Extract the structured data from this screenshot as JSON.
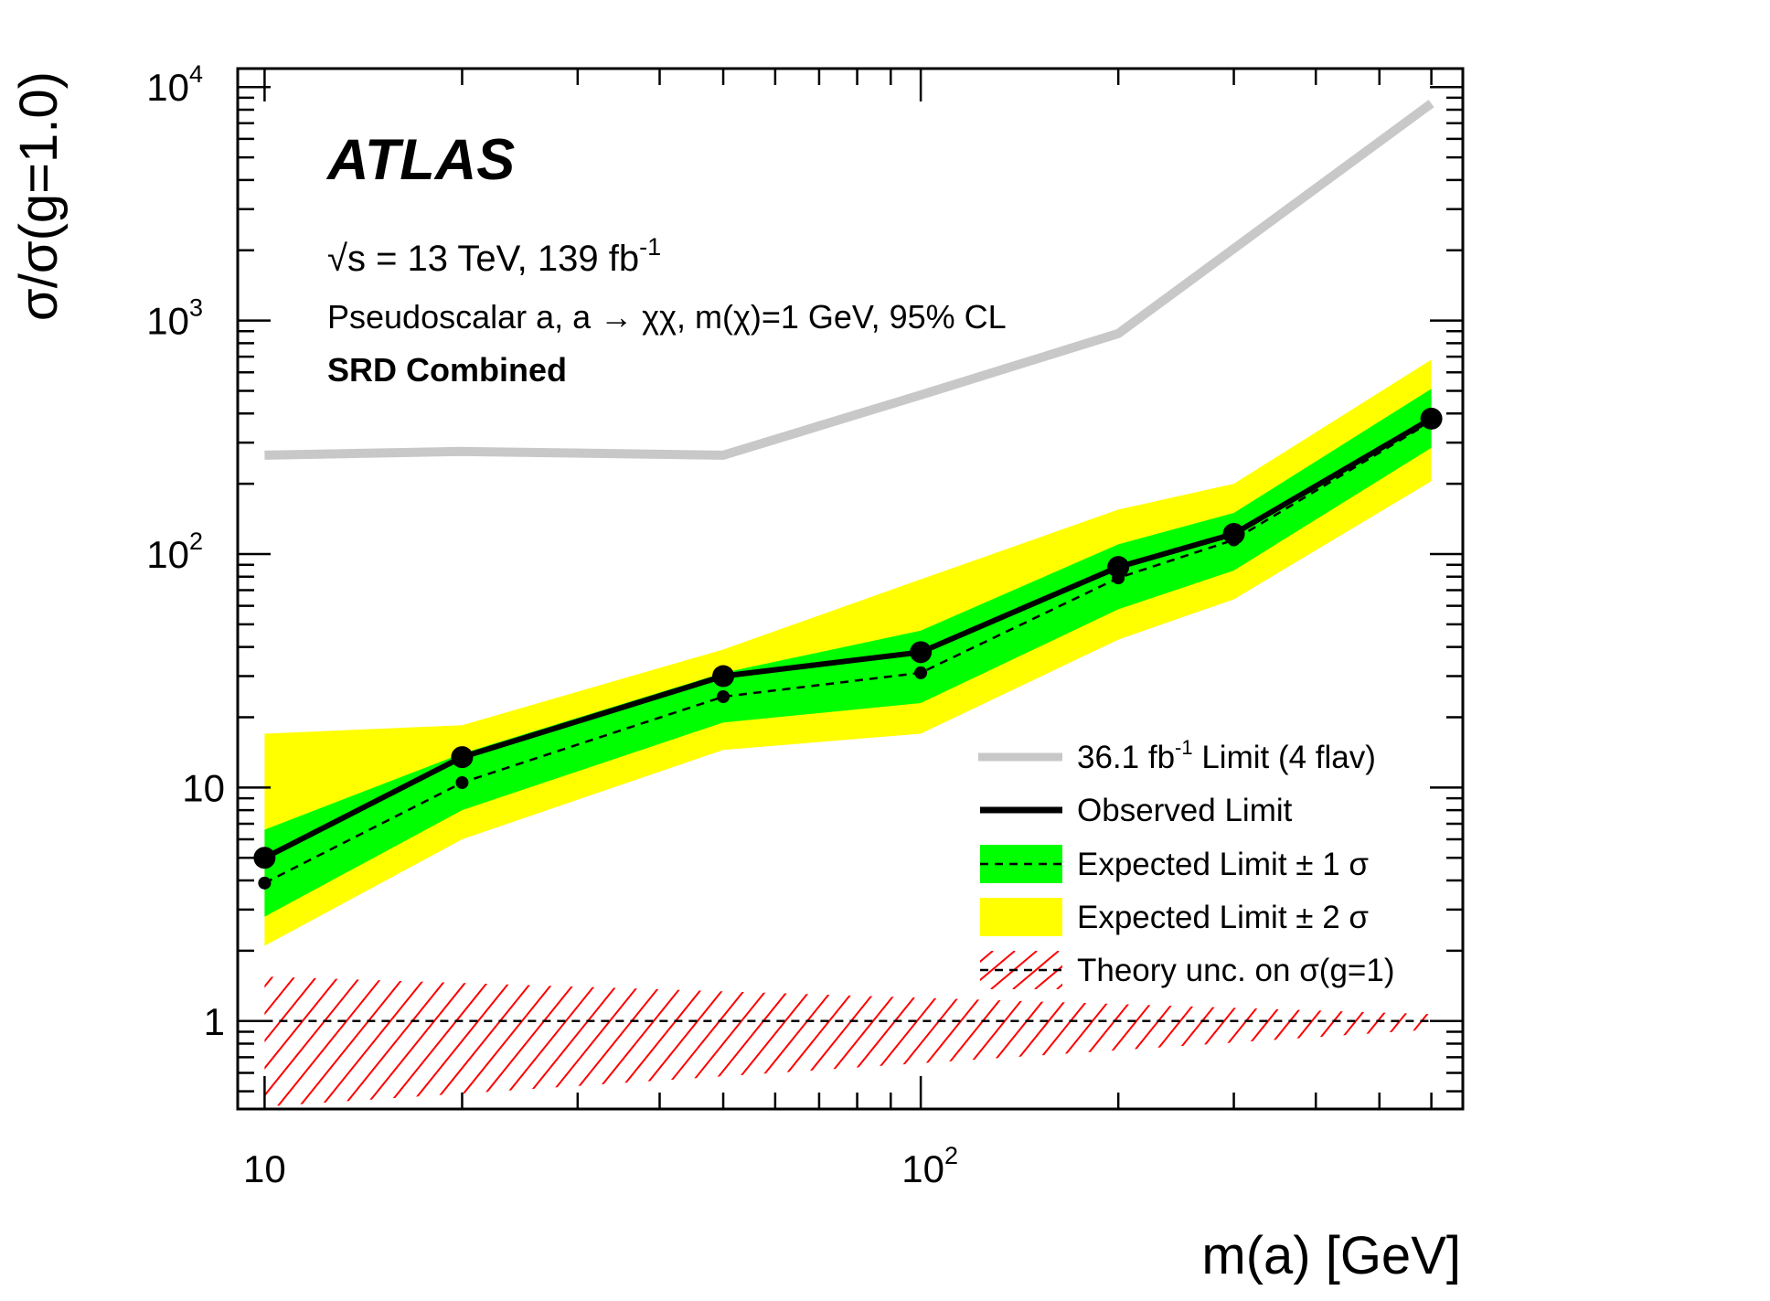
{
  "chart_data": {
    "type": "line",
    "x_scale": "log",
    "y_scale": "log",
    "xlim": [
      9.1,
      670
    ],
    "ylim": [
      0.42,
      12000
    ],
    "xlabel": "m(a) [GeV]",
    "ylabel": "σ/σ(g=1.0)",
    "x_ticks": [
      {
        "value": 10,
        "base": "10",
        "sup": ""
      },
      {
        "value": 100,
        "base": "10",
        "sup": "2"
      }
    ],
    "y_ticks": [
      {
        "value": 1,
        "base": "1",
        "sup": ""
      },
      {
        "value": 10,
        "base": "10",
        "sup": ""
      },
      {
        "value": 100,
        "base": "10",
        "sup": "2"
      },
      {
        "value": 1000,
        "base": "10",
        "sup": "3"
      },
      {
        "value": 10000,
        "base": "10",
        "sup": "4"
      }
    ],
    "annotations": {
      "experiment": "ATLAS",
      "energy_prefix": "√s = 13 TeV, 139 fb",
      "energy_sup": "-1",
      "model": "Pseudoscalar a, a → χχ, m(χ)=1 GeV, 95% CL",
      "region": "SRD Combined"
    },
    "legend": {
      "placement": "bottom-right",
      "entries": [
        {
          "label_prefix": "36.1 fb",
          "label_sup": "-1",
          "label_suffix": " Limit (4 flav)"
        },
        {
          "label_prefix": "Observed Limit",
          "label_sup": "",
          "label_suffix": ""
        },
        {
          "label_prefix": "Expected Limit ± 1 σ",
          "label_sup": "",
          "label_suffix": ""
        },
        {
          "label_prefix": "Expected Limit ± 2 σ",
          "label_sup": "",
          "label_suffix": ""
        },
        {
          "label_prefix": "Theory unc. on σ(g=1)",
          "label_sup": "",
          "label_suffix": ""
        }
      ]
    },
    "colors": {
      "previous": "#c8c8c8",
      "observed": "#000000",
      "band1": "#00ff00",
      "band2": "#ffff00",
      "theory": "#ff0000"
    },
    "series": [
      {
        "name": "36.1 fb-1 Limit (4 flav)",
        "x": [
          10,
          20,
          50,
          100,
          200,
          600
        ],
        "y": [
          265,
          275,
          265,
          480,
          880,
          8500
        ]
      },
      {
        "name": "Observed Limit",
        "x": [
          10,
          20,
          50,
          100,
          200,
          300,
          600
        ],
        "y": [
          5.0,
          13.5,
          30,
          38,
          88,
          122,
          380
        ]
      },
      {
        "name": "Expected Limit",
        "x": [
          10,
          20,
          50,
          100,
          200,
          300,
          600
        ],
        "y": [
          3.9,
          10.5,
          24.5,
          31,
          79,
          115,
          370
        ]
      }
    ],
    "bands": [
      {
        "name": "Expected Limit ± 2 σ",
        "x": [
          10,
          20,
          50,
          100,
          200,
          300,
          600
        ],
        "low": [
          2.1,
          6.0,
          14.5,
          17,
          43,
          64,
          205
        ],
        "high": [
          17,
          18.5,
          39,
          78,
          155,
          200,
          680
        ]
      },
      {
        "name": "Expected Limit ± 1 σ",
        "x": [
          10,
          20,
          50,
          100,
          200,
          300,
          600
        ],
        "low": [
          2.8,
          8.0,
          19,
          23,
          58,
          85,
          285
        ],
        "high": [
          6.6,
          14,
          31,
          47,
          110,
          150,
          510
        ]
      }
    ],
    "theory": {
      "x": [
        10,
        600
      ],
      "central": 1.0,
      "low": [
        0.43,
        0.92
      ],
      "high": [
        1.55,
        1.07
      ]
    }
  }
}
